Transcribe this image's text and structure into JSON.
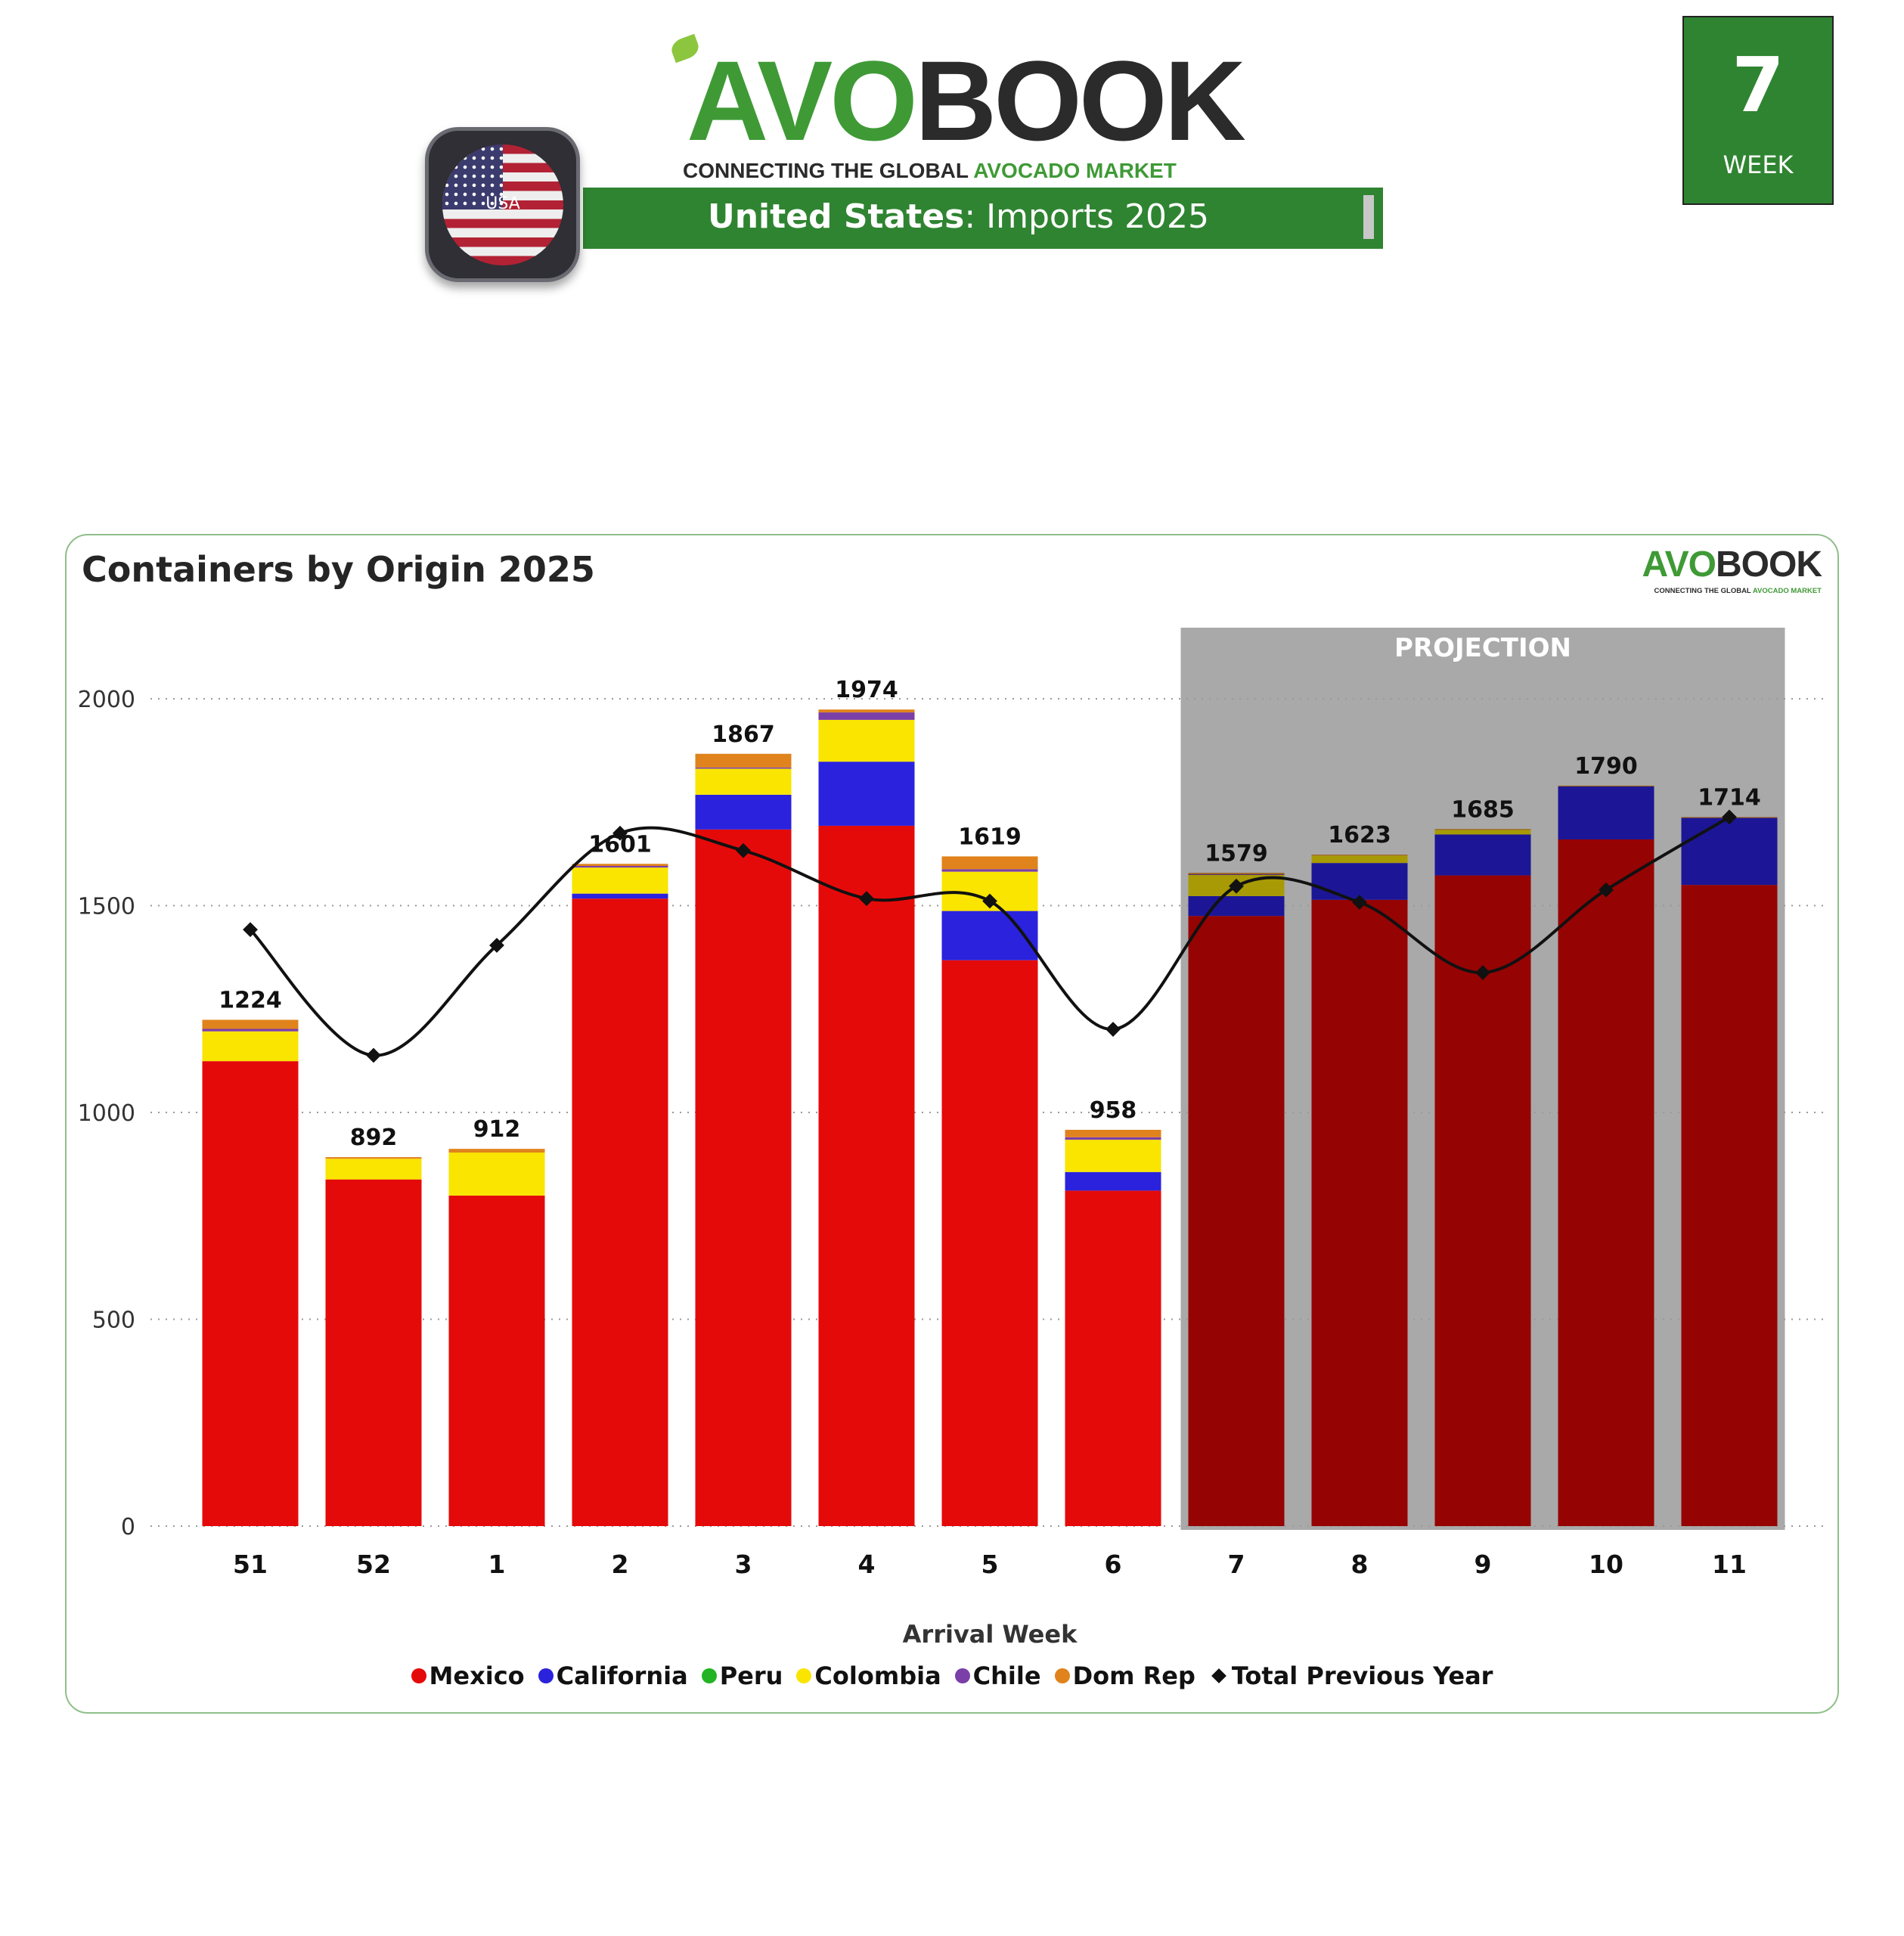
{
  "header": {
    "logo_part1": "AVO",
    "logo_part2": "BOOK",
    "tagline_part1": "CONNECTING THE GLOBAL ",
    "tagline_part2": "AVOCADO MARKET",
    "flag_label": "USA",
    "banner_country": "United States",
    "banner_rest": ": Imports 2025",
    "week_number": "7",
    "week_label": "WEEK"
  },
  "colors": {
    "brand_green": "#2f8431",
    "Mexico": "#e50a0a",
    "California": "#2b22dd",
    "Peru": "#22b422",
    "Colombia": "#f9e500",
    "Chile": "#7b3fa8",
    "Dom Rep": "#e0831c",
    "Total Previous Year": "#111111",
    "projection_bg": "#a9a9a9"
  },
  "chart_data": {
    "type": "bar",
    "stacked": true,
    "title": "Containers by Origin 2025",
    "xlabel": "Arrival Week",
    "ylabel": "",
    "ylim": [
      0,
      2000
    ],
    "yticks": [
      0,
      500,
      1000,
      1500,
      2000
    ],
    "grid": true,
    "legend_position": "bottom",
    "projection_label": "PROJECTION",
    "projection_categories": [
      "7",
      "8",
      "9",
      "10",
      "11"
    ],
    "categories": [
      "51",
      "52",
      "1",
      "2",
      "3",
      "4",
      "5",
      "6",
      "7",
      "8",
      "9",
      "10",
      "11"
    ],
    "totals": [
      1224,
      892,
      912,
      1601,
      1867,
      1974,
      1619,
      958,
      1579,
      1623,
      1685,
      1790,
      1714
    ],
    "series": [
      {
        "name": "Mexico",
        "values": [
          1124,
          838,
          799,
          1517,
          1684,
          1693,
          1368,
          811,
          1475,
          1514,
          1573,
          1660,
          1550
        ]
      },
      {
        "name": "California",
        "values": [
          0,
          0,
          0,
          12,
          84,
          155,
          119,
          45,
          48,
          89,
          99,
          128,
          162
        ]
      },
      {
        "name": "Peru",
        "values": [
          0,
          0,
          0,
          0,
          0,
          0,
          0,
          0,
          0,
          0,
          0,
          0,
          0
        ]
      },
      {
        "name": "Colombia",
        "values": [
          72,
          50,
          104,
          63,
          63,
          101,
          95,
          78,
          51,
          18,
          11,
          0,
          0
        ]
      },
      {
        "name": "Chile",
        "values": [
          6,
          0,
          0,
          4,
          3,
          18,
          6,
          6,
          2,
          0,
          0,
          0,
          0
        ]
      },
      {
        "name": "Dom Rep",
        "values": [
          22,
          4,
          9,
          5,
          33,
          7,
          31,
          18,
          3,
          2,
          2,
          2,
          2
        ]
      }
    ],
    "line_series": {
      "name": "Total Previous Year",
      "values": [
        1442,
        1138,
        1404,
        1675,
        1633,
        1517,
        1511,
        1201,
        1547,
        1508,
        1338,
        1538,
        1714
      ]
    }
  }
}
